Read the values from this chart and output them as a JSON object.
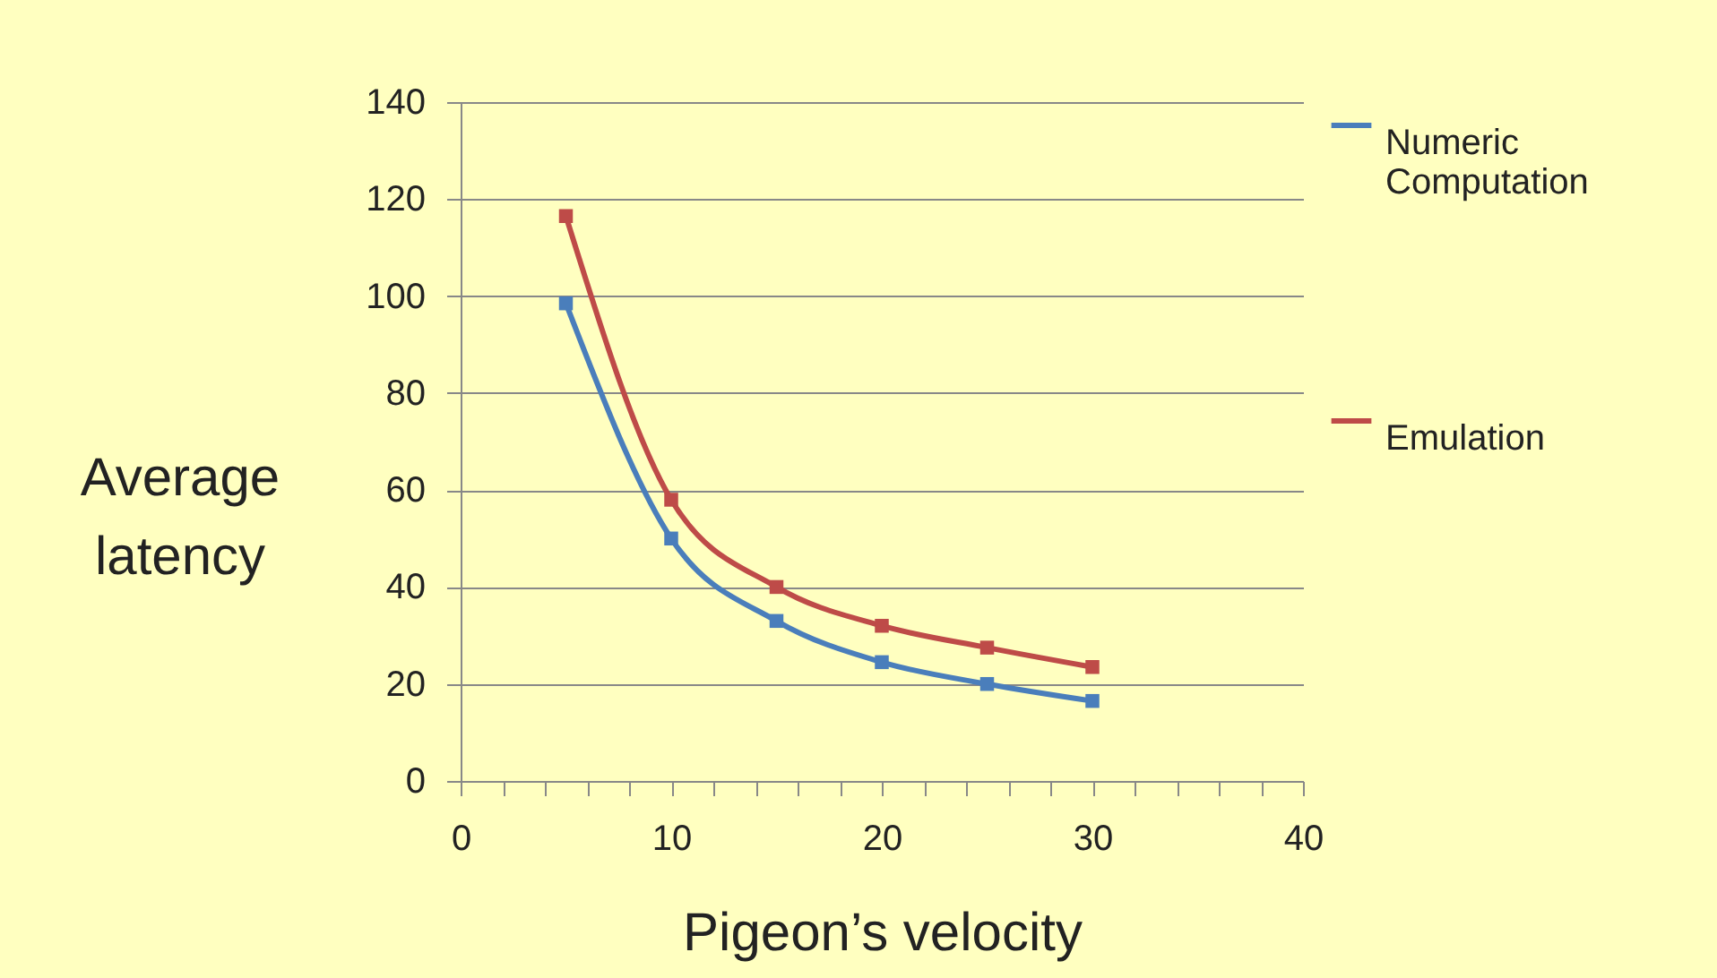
{
  "chart_data": {
    "type": "line",
    "xlabel": "Pigeon’s velocity",
    "ylabel": "Average latency",
    "x": [
      5,
      10,
      15,
      20,
      25,
      30
    ],
    "series": [
      {
        "name": "Numeric Computation",
        "color": "#4a7ebb",
        "values": [
          98.5,
          50,
          33,
          24.5,
          20,
          16.5
        ]
      },
      {
        "name": "Emulation",
        "color": "#be4b48",
        "values": [
          116.5,
          58,
          40,
          32,
          27.5,
          23.5
        ]
      }
    ],
    "xlim": [
      0,
      40
    ],
    "xticks": [
      0,
      {
        "value": 2,
        "label": null
      },
      {
        "value": 4,
        "label": null
      },
      {
        "value": 6,
        "label": null
      },
      {
        "value": 8,
        "label": null
      },
      10,
      {
        "value": 12,
        "label": null
      },
      {
        "value": 14,
        "label": null
      },
      {
        "value": 16,
        "label": null
      },
      {
        "value": 18,
        "label": null
      },
      20,
      {
        "value": 22,
        "label": null
      },
      {
        "value": 24,
        "label": null
      },
      {
        "value": 26,
        "label": null
      },
      {
        "value": 28,
        "label": null
      },
      30,
      {
        "value": 32,
        "label": null
      },
      {
        "value": 34,
        "label": null
      },
      {
        "value": 36,
        "label": null
      },
      {
        "value": 38,
        "label": null
      },
      40
    ],
    "ylim": [
      0,
      140
    ],
    "yticks": [
      0,
      20,
      40,
      60,
      80,
      100,
      120,
      140
    ],
    "grid": "y",
    "legend": "right",
    "marker": "square",
    "line_style": "solid"
  }
}
